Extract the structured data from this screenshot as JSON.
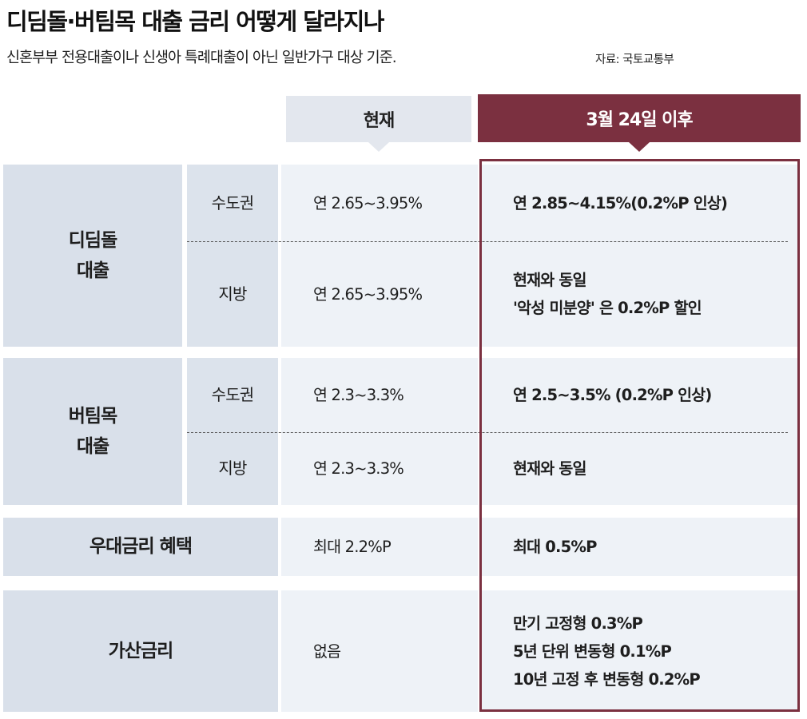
{
  "header": {
    "title": "디딤돌·버팀목 대출 금리 어떻게 달라지나",
    "subtitle": "신혼부부 전용대출이나 신생아 특례대출이 아닌 일반가구 대상 기준.",
    "source": "자료: 국토교통부"
  },
  "columns": {
    "current": "현재",
    "after": "3월 24일 이후"
  },
  "rows": {
    "didimdol": {
      "category_line1": "디딤돌",
      "category_line2": "대출",
      "metro": {
        "region": "수도권",
        "current": "연 2.65~3.95%",
        "after": "연 2.85~4.15%(0.2%P 인상)"
      },
      "local": {
        "region": "지방",
        "current": "연 2.65~3.95%",
        "after_line1": "현재와 동일",
        "after_line2": "'악성 미분양' 은 0.2%P 할인"
      }
    },
    "beotimmok": {
      "category_line1": "버팀목",
      "category_line2": "대출",
      "metro": {
        "region": "수도권",
        "current": "연 2.3~3.3%",
        "after": "연 2.5~3.5% (0.2%P 인상)"
      },
      "local": {
        "region": "지방",
        "current": "연 2.3~3.3%",
        "after": "현재와 동일"
      }
    },
    "preferential": {
      "category": "우대금리 혜택",
      "current": "최대 2.2%P",
      "after": "최대 0.5%P"
    },
    "surcharge": {
      "category": "가산금리",
      "current": "없음",
      "after_line1": "만기 고정형 0.3%P",
      "after_line2": "5년 단위 변동형 0.1%P",
      "after_line3": "10년 고정 후 변동형 0.2%P"
    }
  }
}
